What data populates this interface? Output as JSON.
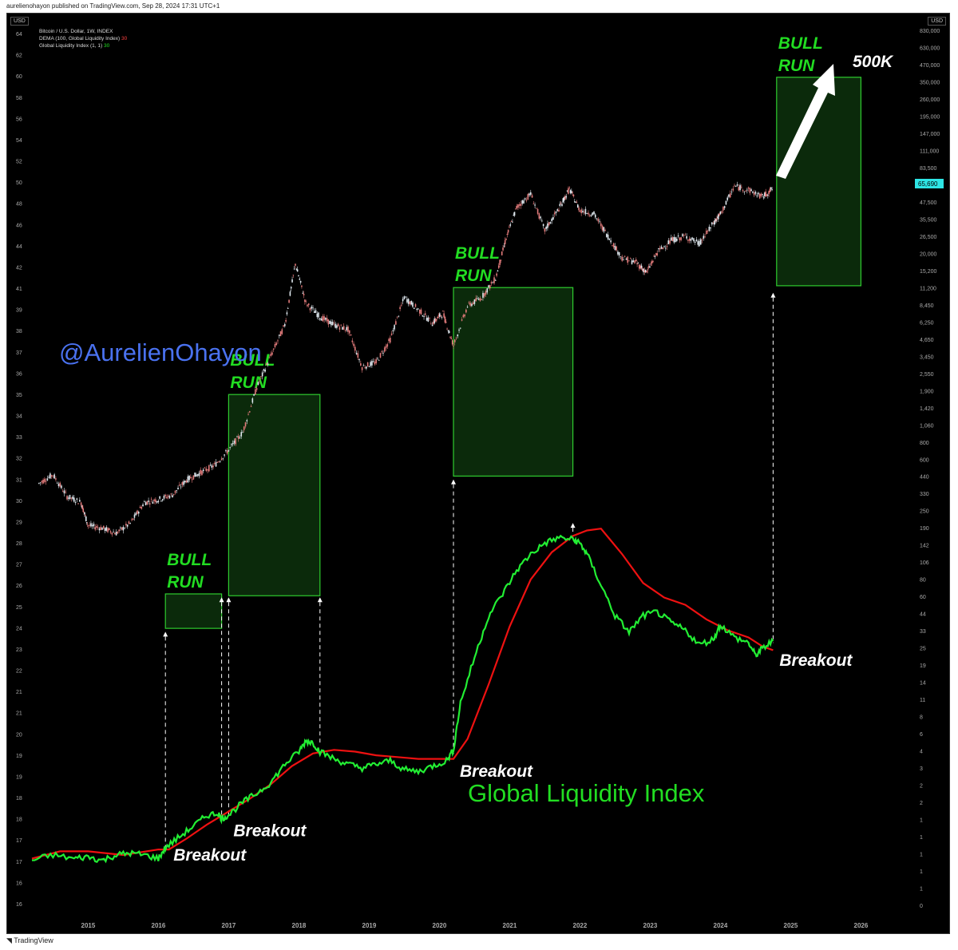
{
  "topbar": {
    "publisher": "aurelienohayon published on TradingView.com, Sep 28, 2024 17:31 UTC+1"
  },
  "legend": {
    "line1": "Bitcoin / U.S. Dollar, 1W, INDEX",
    "line2_label": "DEMA (100, Global Liquidity Index)",
    "line2_value": "30",
    "line3_label": "Global Liquidity Index (1, 1)",
    "line3_value": "30"
  },
  "currency_label": "USD",
  "footer": {
    "logo_text": "TradingView"
  },
  "colors": {
    "background": "#000000",
    "gli": "#22ee33",
    "dema": "#ee1111",
    "box_fill": "#0b2a0b",
    "box_stroke": "#2ecc2e",
    "annotation_green": "#22dd22",
    "handle": "#4a72f0",
    "price_tag": "#2ee5e5"
  },
  "watermark": "@AurelienOhayon",
  "chart_title": "Global Liquidity Index",
  "target_label": "500K",
  "current_price_tag": "65,690",
  "chart_data": {
    "type": "line",
    "x_ticks": [
      "2015",
      "2016",
      "2017",
      "2018",
      "2019",
      "2020",
      "2021",
      "2022",
      "2023",
      "2024",
      "2025",
      "2026"
    ],
    "left_axis_ticks": [
      "64",
      "62",
      "60",
      "58",
      "56",
      "54",
      "52",
      "50",
      "48",
      "46",
      "44",
      "42",
      "41",
      "39",
      "38",
      "37",
      "36",
      "35",
      "34",
      "33",
      "32",
      "31",
      "30",
      "29",
      "28",
      "27",
      "26",
      "25",
      "24",
      "23",
      "22",
      "21",
      "21",
      "20",
      "19",
      "19",
      "18",
      "18",
      "17",
      "17",
      "16",
      "16"
    ],
    "right_axis_ticks": [
      "830,000",
      "630,000",
      "470,000",
      "350,000",
      "260,000",
      "195,000",
      "147,000",
      "111,000",
      "83,500",
      "65,690",
      "47,500",
      "35,500",
      "26,500",
      "20,000",
      "15,200",
      "11,200",
      "8,450",
      "6,250",
      "4,650",
      "3,450",
      "2,550",
      "1,900",
      "1,420",
      "1,060",
      "800",
      "600",
      "440",
      "330",
      "250",
      "190",
      "142",
      "106",
      "80",
      "60",
      "44",
      "33",
      "25",
      "19",
      "14",
      "11",
      "8",
      "6",
      "4",
      "3",
      "2",
      "2",
      "1",
      "1",
      "1",
      "1",
      "1",
      "0"
    ],
    "series": [
      {
        "name": "Bitcoin / U.S. Dollar, 1W, INDEX",
        "kind": "candles",
        "points": [
          [
            2014.3,
            520
          ],
          [
            2014.5,
            600
          ],
          [
            2014.7,
            420
          ],
          [
            2014.9,
            380
          ],
          [
            2015.0,
            260
          ],
          [
            2015.2,
            250
          ],
          [
            2015.4,
            230
          ],
          [
            2015.6,
            270
          ],
          [
            2015.8,
            380
          ],
          [
            2016.0,
            400
          ],
          [
            2016.2,
            430
          ],
          [
            2016.4,
            550
          ],
          [
            2016.6,
            620
          ],
          [
            2016.8,
            700
          ],
          [
            2017.0,
            900
          ],
          [
            2017.2,
            1200
          ],
          [
            2017.4,
            2500
          ],
          [
            2017.6,
            4200
          ],
          [
            2017.8,
            7000
          ],
          [
            2017.95,
            19000
          ],
          [
            2018.1,
            10000
          ],
          [
            2018.3,
            8000
          ],
          [
            2018.5,
            7000
          ],
          [
            2018.7,
            6500
          ],
          [
            2018.9,
            3500
          ],
          [
            2019.1,
            3800
          ],
          [
            2019.3,
            5500
          ],
          [
            2019.5,
            11000
          ],
          [
            2019.7,
            9000
          ],
          [
            2019.9,
            7200
          ],
          [
            2020.05,
            8500
          ],
          [
            2020.2,
            5000
          ],
          [
            2020.4,
            9500
          ],
          [
            2020.6,
            11000
          ],
          [
            2020.8,
            15000
          ],
          [
            2020.95,
            29000
          ],
          [
            2021.1,
            48000
          ],
          [
            2021.3,
            60000
          ],
          [
            2021.5,
            33000
          ],
          [
            2021.7,
            47000
          ],
          [
            2021.85,
            65000
          ],
          [
            2022.0,
            46000
          ],
          [
            2022.2,
            43000
          ],
          [
            2022.4,
            30000
          ],
          [
            2022.6,
            21000
          ],
          [
            2022.8,
            19500
          ],
          [
            2022.95,
            16500
          ],
          [
            2023.1,
            23000
          ],
          [
            2023.3,
            28000
          ],
          [
            2023.5,
            30000
          ],
          [
            2023.7,
            26500
          ],
          [
            2023.9,
            37000
          ],
          [
            2024.0,
            43000
          ],
          [
            2024.2,
            68000
          ],
          [
            2024.4,
            64000
          ],
          [
            2024.6,
            57000
          ],
          [
            2024.75,
            65690
          ]
        ]
      },
      {
        "name": "Global Liquidity Index (1, 1)",
        "kind": "line",
        "points": [
          [
            2014.2,
            18.3
          ],
          [
            2014.5,
            18.6
          ],
          [
            2014.8,
            18.4
          ],
          [
            2015.0,
            18.5
          ],
          [
            2015.2,
            18.3
          ],
          [
            2015.4,
            18.6
          ],
          [
            2015.6,
            18.7
          ],
          [
            2015.8,
            18.6
          ],
          [
            2016.0,
            18.4
          ],
          [
            2016.1,
            19.0
          ],
          [
            2016.3,
            19.6
          ],
          [
            2016.5,
            20.2
          ],
          [
            2016.7,
            20.8
          ],
          [
            2016.85,
            20.9
          ],
          [
            2016.9,
            20.6
          ],
          [
            2017.0,
            20.8
          ],
          [
            2017.2,
            21.5
          ],
          [
            2017.4,
            22.0
          ],
          [
            2017.6,
            22.6
          ],
          [
            2017.8,
            23.6
          ],
          [
            2018.0,
            24.3
          ],
          [
            2018.1,
            24.9
          ],
          [
            2018.2,
            24.8
          ],
          [
            2018.3,
            24.3
          ],
          [
            2018.5,
            23.9
          ],
          [
            2018.7,
            23.6
          ],
          [
            2018.9,
            23.4
          ],
          [
            2019.1,
            23.6
          ],
          [
            2019.3,
            23.8
          ],
          [
            2019.5,
            23.3
          ],
          [
            2019.7,
            23.2
          ],
          [
            2019.9,
            23.5
          ],
          [
            2020.1,
            23.8
          ],
          [
            2020.2,
            24.4
          ],
          [
            2020.3,
            27.0
          ],
          [
            2020.5,
            29.5
          ],
          [
            2020.7,
            31.8
          ],
          [
            2020.9,
            33.0
          ],
          [
            2021.1,
            34.3
          ],
          [
            2021.3,
            35.2
          ],
          [
            2021.5,
            35.8
          ],
          [
            2021.7,
            36.1
          ],
          [
            2021.9,
            36.0
          ],
          [
            2022.0,
            35.8
          ],
          [
            2022.1,
            35.2
          ],
          [
            2022.3,
            33.5
          ],
          [
            2022.5,
            31.8
          ],
          [
            2022.7,
            30.9
          ],
          [
            2022.9,
            31.8
          ],
          [
            2023.1,
            32.0
          ],
          [
            2023.3,
            31.4
          ],
          [
            2023.5,
            31.0
          ],
          [
            2023.7,
            30.2
          ],
          [
            2023.9,
            30.5
          ],
          [
            2024.0,
            31.3
          ],
          [
            2024.2,
            30.6
          ],
          [
            2024.4,
            30.3
          ],
          [
            2024.5,
            29.6
          ],
          [
            2024.6,
            30.0
          ],
          [
            2024.75,
            30.4
          ]
        ]
      },
      {
        "name": "DEMA (100, Global Liquidity Index)",
        "kind": "line",
        "points": [
          [
            2014.2,
            18.4
          ],
          [
            2014.6,
            18.8
          ],
          [
            2015.0,
            18.8
          ],
          [
            2015.5,
            18.6
          ],
          [
            2016.0,
            18.9
          ],
          [
            2016.15,
            18.9
          ],
          [
            2016.4,
            19.5
          ],
          [
            2016.7,
            20.3
          ],
          [
            2017.0,
            21.0
          ],
          [
            2017.3,
            21.7
          ],
          [
            2017.6,
            22.5
          ],
          [
            2017.9,
            23.5
          ],
          [
            2018.2,
            24.2
          ],
          [
            2018.5,
            24.4
          ],
          [
            2018.8,
            24.3
          ],
          [
            2019.1,
            24.1
          ],
          [
            2019.4,
            24.0
          ],
          [
            2019.7,
            23.9
          ],
          [
            2020.0,
            23.9
          ],
          [
            2020.2,
            23.9
          ],
          [
            2020.4,
            25.0
          ],
          [
            2020.7,
            28.0
          ],
          [
            2021.0,
            31.2
          ],
          [
            2021.3,
            33.8
          ],
          [
            2021.6,
            35.3
          ],
          [
            2021.9,
            36.2
          ],
          [
            2022.1,
            36.5
          ],
          [
            2022.3,
            36.6
          ],
          [
            2022.6,
            35.2
          ],
          [
            2022.9,
            33.6
          ],
          [
            2023.2,
            32.8
          ],
          [
            2023.5,
            32.4
          ],
          [
            2023.8,
            31.6
          ],
          [
            2024.1,
            31.0
          ],
          [
            2024.4,
            30.6
          ],
          [
            2024.6,
            30.1
          ],
          [
            2024.75,
            29.9
          ]
        ]
      }
    ],
    "bull_run_boxes": [
      {
        "label_line1": "BULL",
        "label_line2": "RUN",
        "x0": 2016.1,
        "x1": 2016.9,
        "y0": 31.1,
        "y1": 33.0
      },
      {
        "label_line1": "BULL",
        "label_line2": "RUN",
        "x0": 2017.0,
        "x1": 2018.3,
        "y0": 32.9,
        "y1": 44.0
      },
      {
        "label_line1": "BULL",
        "label_line2": "RUN",
        "x0": 2020.2,
        "x1": 2021.9,
        "y0": 39.5,
        "y1": 49.9
      },
      {
        "label_line1": "BULL",
        "label_line2": "RUN",
        "x0": 2024.8,
        "x1": 2026.0,
        "y0": 50.0,
        "y1": 61.5
      }
    ],
    "breakout_labels": [
      {
        "text": "Breakout",
        "x": 2016.1,
        "y": 18.9
      },
      {
        "text": "Breakout",
        "x": 2017.0,
        "y": 20.6
      },
      {
        "text": "Breakout",
        "x": 2020.2,
        "y": 23.8
      },
      {
        "text": "Breakout",
        "x": 2024.75,
        "y": 30.0
      }
    ],
    "vertical_markers": [
      2016.1,
      2016.9,
      2017.0,
      2018.3,
      2020.2,
      2021.9,
      2024.75
    ],
    "left_ylim": [
      16,
      64
    ],
    "log_price_axis": true,
    "grid": false
  }
}
